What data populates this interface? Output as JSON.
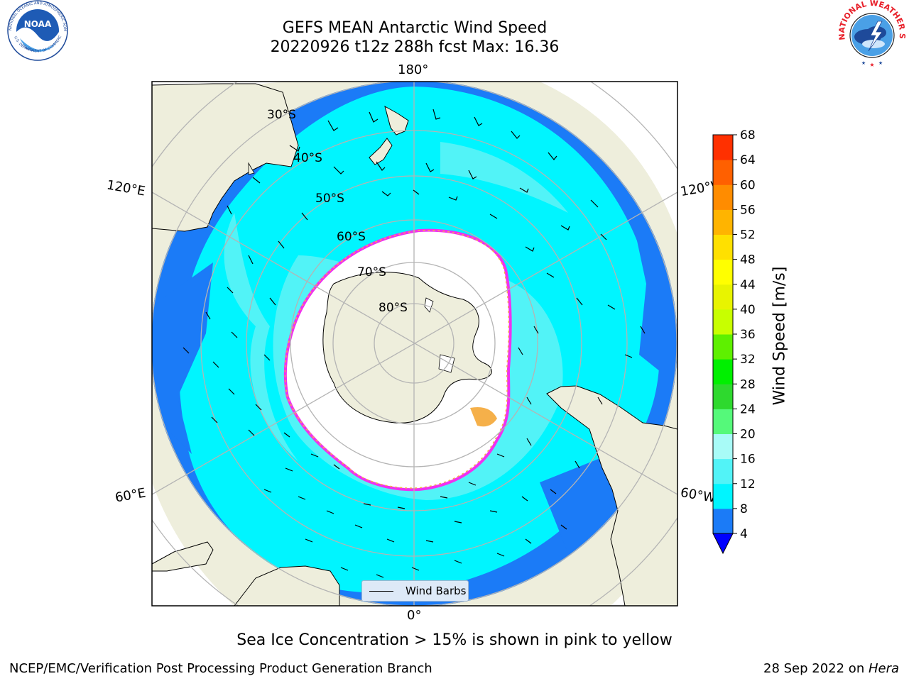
{
  "title": {
    "line1": "GEFS MEAN Antarctic Wind Speed",
    "line2": "20220926 t12z 288h fcst   Max: 16.36"
  },
  "logos": {
    "left": {
      "name": "NOARA",
      "ring_text": "NATIONAL OCEANIC AND ATMOSPHERIC ADMINISTRATION · U.S. DEPARTMENT OF COMMERCE"
    },
    "right": {
      "name": "National Weather Service",
      "ring_text": "NATIONAL WEATHER SERVICE"
    }
  },
  "map": {
    "projection": "south polar stereographic",
    "longitude_labels": {
      "top": "180°",
      "bottom": "0°",
      "upper_left": "120°E",
      "upper_right": "120°W",
      "lower_left": "60°E",
      "lower_right": "60°W"
    },
    "latitude_labels": [
      "30°S",
      "40°S",
      "50°S",
      "60°S",
      "70°S",
      "80°S"
    ],
    "colors": {
      "land": "#eeeedc",
      "ocean_4_8": "#1b7bf7",
      "ocean_8_12": "#00f5ff",
      "ocean_12_16": "#52f3f7",
      "sea_ice_edge_pink": "#f030f0",
      "sea_ice_edge_orange": "#f5b04a",
      "grid": "#b4b4b4"
    },
    "legend_label": "Wind Barbs"
  },
  "colorbar": {
    "label": "Wind Speed [m/s]",
    "ticks": [
      "4",
      "8",
      "12",
      "16",
      "20",
      "24",
      "28",
      "32",
      "36",
      "40",
      "44",
      "48",
      "52",
      "56",
      "60",
      "64",
      "68"
    ],
    "colors": [
      "#1b7bf7",
      "#00f5ff",
      "#52f3f7",
      "#a8fbf7",
      "#55f97a",
      "#2ed92e",
      "#00f000",
      "#5ef000",
      "#c8ff00",
      "#e8f400",
      "#ffff00",
      "#ffe000",
      "#ffb400",
      "#ff8c00",
      "#ff6000",
      "#ff3000",
      "#ff0000"
    ],
    "extend_min_color": "#0000ff"
  },
  "footer": {
    "note": "Sea Ice Concentration > 15% is shown in pink to yellow",
    "credit": "NCEP/EMC/Verification Post Processing Product Generation Branch",
    "date": "28 Sep 2022 on ",
    "host": "Hera"
  }
}
